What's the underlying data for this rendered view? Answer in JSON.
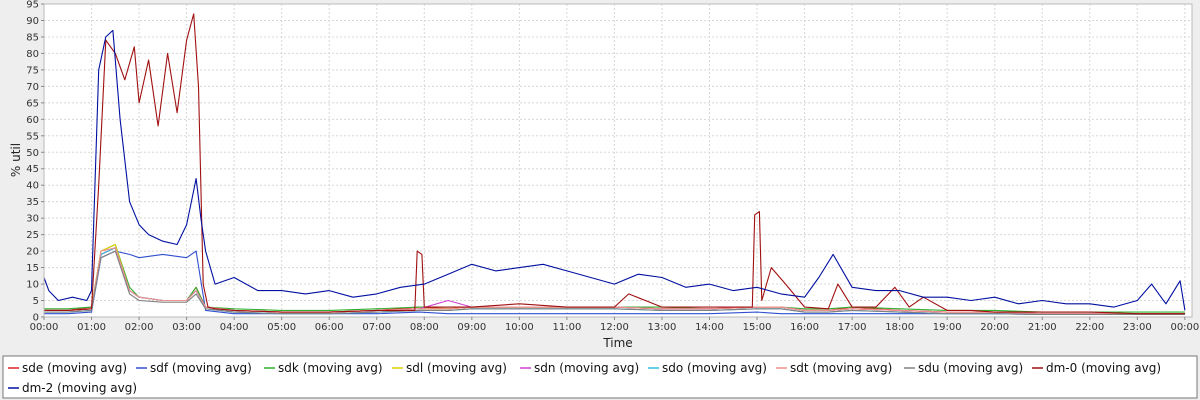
{
  "chart_data": {
    "type": "line",
    "title": "",
    "xlabel": "Time",
    "ylabel": "% util",
    "xlim": [
      0,
      24.15
    ],
    "ylim": [
      0,
      95
    ],
    "x_ticks": [
      {
        "value": 0,
        "label": "00:00"
      },
      {
        "value": 1,
        "label": "01:00"
      },
      {
        "value": 2,
        "label": "02:00"
      },
      {
        "value": 3,
        "label": "03:00"
      },
      {
        "value": 4,
        "label": "04:00"
      },
      {
        "value": 5,
        "label": "05:00"
      },
      {
        "value": 6,
        "label": "06:00"
      },
      {
        "value": 7,
        "label": "07:00"
      },
      {
        "value": 8,
        "label": "08:00"
      },
      {
        "value": 9,
        "label": "09:00"
      },
      {
        "value": 10,
        "label": "10:00"
      },
      {
        "value": 11,
        "label": "11:00"
      },
      {
        "value": 12,
        "label": "12:00"
      },
      {
        "value": 13,
        "label": "13:00"
      },
      {
        "value": 14,
        "label": "14:00"
      },
      {
        "value": 15,
        "label": "15:00"
      },
      {
        "value": 16,
        "label": "16:00"
      },
      {
        "value": 17,
        "label": "17:00"
      },
      {
        "value": 18,
        "label": "18:00"
      },
      {
        "value": 19,
        "label": "19:00"
      },
      {
        "value": 20,
        "label": "20:00"
      },
      {
        "value": 21,
        "label": "21:00"
      },
      {
        "value": 22,
        "label": "22:00"
      },
      {
        "value": 23,
        "label": "23:00"
      },
      {
        "value": 24,
        "label": "00:00"
      }
    ],
    "y_ticks": [
      0,
      5,
      10,
      15,
      20,
      25,
      30,
      35,
      40,
      45,
      50,
      55,
      60,
      65,
      70,
      75,
      80,
      85,
      90,
      95
    ],
    "grid": true,
    "legend_position": "bottom",
    "series": [
      {
        "name": "sde (moving avg)",
        "color": "#e02020",
        "x": [
          0,
          0.5,
          1.0,
          1.2,
          1.5,
          1.8,
          2.0,
          2.5,
          3.0,
          3.2,
          3.4,
          4,
          5,
          6,
          7,
          7.9,
          8.5,
          9,
          10,
          11,
          12,
          13,
          14,
          15,
          15.5,
          16,
          16.5,
          17,
          18,
          19,
          20,
          21,
          22,
          23,
          24
        ],
        "y": [
          2,
          2,
          3,
          19,
          21,
          8,
          6,
          5,
          5,
          9,
          3,
          2,
          1.5,
          1.5,
          2,
          3,
          2.5,
          3,
          3,
          3,
          3,
          2.5,
          2.5,
          3,
          3,
          2,
          2,
          3,
          2,
          1.5,
          1.5,
          1,
          1,
          1,
          1
        ]
      },
      {
        "name": "sdf (moving avg)",
        "color": "#3050d0",
        "x": [
          0,
          0.5,
          1.0,
          1.2,
          1.5,
          1.8,
          2.0,
          2.5,
          3.0,
          3.2,
          3.4,
          4,
          5,
          6,
          7,
          7.9,
          8.5,
          9,
          10,
          11,
          12,
          13,
          14,
          15,
          15.5,
          16,
          16.5,
          17,
          18,
          19,
          20,
          21,
          22,
          23,
          24
        ],
        "y": [
          1,
          1,
          1.5,
          18,
          20,
          19,
          18,
          19,
          18,
          20,
          2,
          1,
          1,
          1,
          1,
          1.5,
          1,
          1,
          1,
          1,
          1,
          1,
          1,
          1.5,
          1,
          1,
          1,
          1,
          1,
          1,
          1,
          0.8,
          0.8,
          0.8,
          0.8
        ]
      },
      {
        "name": "sdk (moving avg)",
        "color": "#30b030",
        "x": [
          0,
          0.5,
          1.0,
          1.2,
          1.5,
          1.8,
          2.0,
          2.5,
          3.0,
          3.2,
          3.4,
          4,
          5,
          6,
          7,
          7.9,
          8.5,
          9,
          10,
          11,
          12,
          13,
          14,
          15,
          15.5,
          16,
          16.5,
          17,
          18,
          19,
          20,
          21,
          22,
          23,
          24
        ],
        "y": [
          2.5,
          2.5,
          3,
          20,
          22,
          9,
          6,
          5,
          5,
          9,
          3,
          2.5,
          2,
          2,
          2.5,
          3,
          3,
          3,
          3,
          3,
          3,
          3,
          2.5,
          3,
          3,
          2.5,
          2.5,
          3,
          2.5,
          2,
          2,
          1.5,
          1.5,
          1.5,
          1.5
        ]
      },
      {
        "name": "sdl (moving avg)",
        "color": "#e0d000",
        "x": [
          0,
          0.5,
          1.0,
          1.2,
          1.5,
          1.8,
          2.0,
          2.5,
          3.0,
          3.2,
          3.4,
          4,
          5,
          6,
          7,
          7.9,
          8.5,
          9,
          10,
          11,
          12,
          13,
          14,
          15,
          15.5,
          16,
          16.5,
          17,
          18,
          19,
          20,
          21,
          22,
          23,
          24
        ],
        "y": [
          2,
          2,
          2.5,
          20,
          22,
          8,
          6,
          5,
          5,
          8,
          3,
          2,
          1.5,
          1.5,
          2,
          2.5,
          2.5,
          3,
          3,
          3,
          3,
          2.5,
          2.5,
          3,
          3,
          2,
          2,
          2.5,
          2,
          1.5,
          1.5,
          1,
          1,
          1,
          1
        ]
      },
      {
        "name": "sdn (moving avg)",
        "color": "#d040d0",
        "x": [
          0,
          0.5,
          1.0,
          1.2,
          1.5,
          1.8,
          2.0,
          2.5,
          3.0,
          3.2,
          3.4,
          4,
          5,
          6,
          7,
          7.9,
          8.5,
          9,
          10,
          11,
          12,
          13,
          14,
          15,
          15.5,
          16,
          16.5,
          17,
          18,
          19,
          20,
          21,
          22,
          23,
          24
        ],
        "y": [
          2,
          2,
          2.5,
          19,
          21,
          8,
          6,
          5,
          5,
          8,
          3,
          2,
          1.5,
          1.5,
          2,
          2.5,
          5,
          3,
          3,
          3,
          3,
          2.5,
          2.5,
          3,
          3,
          2,
          2,
          2.5,
          2,
          1.5,
          1.5,
          1,
          1,
          1,
          1
        ]
      },
      {
        "name": "sdo (moving avg)",
        "color": "#30c0e0",
        "x": [
          0,
          0.5,
          1.0,
          1.2,
          1.5,
          1.8,
          2.0,
          2.5,
          3.0,
          3.2,
          3.4,
          4,
          5,
          6,
          7,
          7.9,
          8.5,
          9,
          10,
          11,
          12,
          13,
          14,
          15,
          15.5,
          16,
          16.5,
          17,
          18,
          19,
          20,
          21,
          22,
          23,
          24
        ],
        "y": [
          1.5,
          1.5,
          2,
          19,
          21,
          8,
          6,
          5,
          5,
          8,
          2.5,
          1.5,
          1,
          1,
          1.5,
          2,
          2,
          2.5,
          2.5,
          2.5,
          2.5,
          2,
          2,
          2.5,
          2.5,
          1.5,
          1.5,
          2,
          1.5,
          1,
          1,
          0.8,
          0.8,
          0.8,
          0.8
        ]
      },
      {
        "name": "sdt (moving avg)",
        "color": "#f09090",
        "x": [
          0,
          0.5,
          1.0,
          1.2,
          1.5,
          1.8,
          2.0,
          2.5,
          3.0,
          3.2,
          3.4,
          4,
          5,
          6,
          7,
          7.9,
          8.5,
          9,
          10,
          11,
          12,
          13,
          14,
          15,
          15.5,
          16,
          16.5,
          17,
          18,
          19,
          20,
          21,
          22,
          23,
          24
        ],
        "y": [
          2,
          2,
          2.5,
          20,
          21,
          8,
          6,
          5,
          5,
          8,
          3,
          2,
          1.5,
          1.5,
          2,
          2.5,
          2.5,
          3,
          3,
          3,
          3,
          2.5,
          2.5,
          3,
          3,
          2,
          2,
          2.5,
          2,
          1.5,
          1.5,
          1,
          1,
          1,
          1
        ]
      },
      {
        "name": "sdu (moving avg)",
        "color": "#808080",
        "x": [
          0,
          0.5,
          1.0,
          1.2,
          1.5,
          1.8,
          2.0,
          2.5,
          3.0,
          3.2,
          3.4,
          4,
          5,
          6,
          7,
          7.9,
          8.5,
          9,
          10,
          11,
          12,
          13,
          14,
          15,
          15.5,
          16,
          16.5,
          17,
          18,
          19,
          20,
          21,
          22,
          23,
          24
        ],
        "y": [
          1.5,
          1.5,
          2,
          18,
          20,
          7,
          5,
          4.5,
          4.5,
          7,
          2.5,
          1.5,
          1,
          1,
          1.5,
          2,
          2,
          2.5,
          2.5,
          2.5,
          2.5,
          2,
          2,
          2.5,
          2.5,
          1.5,
          1.5,
          2,
          1.5,
          1,
          1,
          0.8,
          0.8,
          0.8,
          0.8
        ]
      },
      {
        "name": "dm-0 (moving avg)",
        "color": "#a01010",
        "x": [
          0,
          0.5,
          1.0,
          1.15,
          1.3,
          1.5,
          1.7,
          1.9,
          2.0,
          2.2,
          2.4,
          2.6,
          2.8,
          3.0,
          3.15,
          3.25,
          3.35,
          3.45,
          3.6,
          4,
          5,
          6,
          7,
          7.8,
          7.85,
          7.95,
          8.0,
          8.5,
          9,
          10,
          11,
          12,
          12.3,
          13,
          14,
          14.9,
          14.95,
          15.05,
          15.1,
          15.3,
          15.6,
          16,
          16.5,
          16.7,
          17,
          17.5,
          17.9,
          18.2,
          18.5,
          19,
          19.5,
          20,
          21,
          22,
          23,
          24
        ],
        "y": [
          2,
          2,
          2.5,
          40,
          84,
          80,
          72,
          82,
          65,
          78,
          58,
          80,
          62,
          84,
          92,
          70,
          10,
          3,
          2.5,
          2,
          1.5,
          1.5,
          2,
          2,
          20,
          19,
          3,
          3,
          3,
          4,
          3,
          3,
          7,
          3,
          3,
          3,
          31,
          32,
          5,
          15,
          10,
          3,
          2.5,
          10,
          3,
          3,
          9,
          3,
          6,
          2,
          2,
          1.5,
          1.5,
          1.5,
          1,
          1
        ]
      },
      {
        "name": "dm-2 (moving avg)",
        "color": "#0010a0",
        "x": [
          0,
          0.1,
          0.3,
          0.6,
          0.9,
          1.0,
          1.15,
          1.3,
          1.45,
          1.6,
          1.8,
          2.0,
          2.2,
          2.5,
          2.8,
          3.0,
          3.1,
          3.2,
          3.3,
          3.4,
          3.6,
          4,
          4.5,
          5,
          5.5,
          6,
          6.5,
          7,
          7.5,
          8,
          8.5,
          9,
          9.5,
          10,
          10.5,
          11,
          11.5,
          12,
          12.5,
          13,
          13.5,
          14,
          14.5,
          15,
          15.5,
          16,
          16.3,
          16.6,
          17,
          17.5,
          18,
          18.5,
          19,
          19.5,
          20,
          20.5,
          21,
          21.5,
          22,
          22.5,
          23,
          23.3,
          23.6,
          23.9,
          24
        ],
        "y": [
          12,
          8,
          5,
          6,
          5,
          8,
          75,
          85,
          87,
          60,
          35,
          28,
          25,
          23,
          22,
          28,
          35,
          42,
          30,
          20,
          10,
          12,
          8,
          8,
          7,
          8,
          6,
          7,
          9,
          10,
          13,
          16,
          14,
          15,
          16,
          14,
          12,
          10,
          13,
          12,
          9,
          10,
          8,
          9,
          7,
          6,
          12,
          19,
          9,
          8,
          8,
          6,
          6,
          5,
          6,
          4,
          5,
          4,
          4,
          3,
          5,
          10,
          4,
          11,
          2
        ]
      }
    ]
  }
}
